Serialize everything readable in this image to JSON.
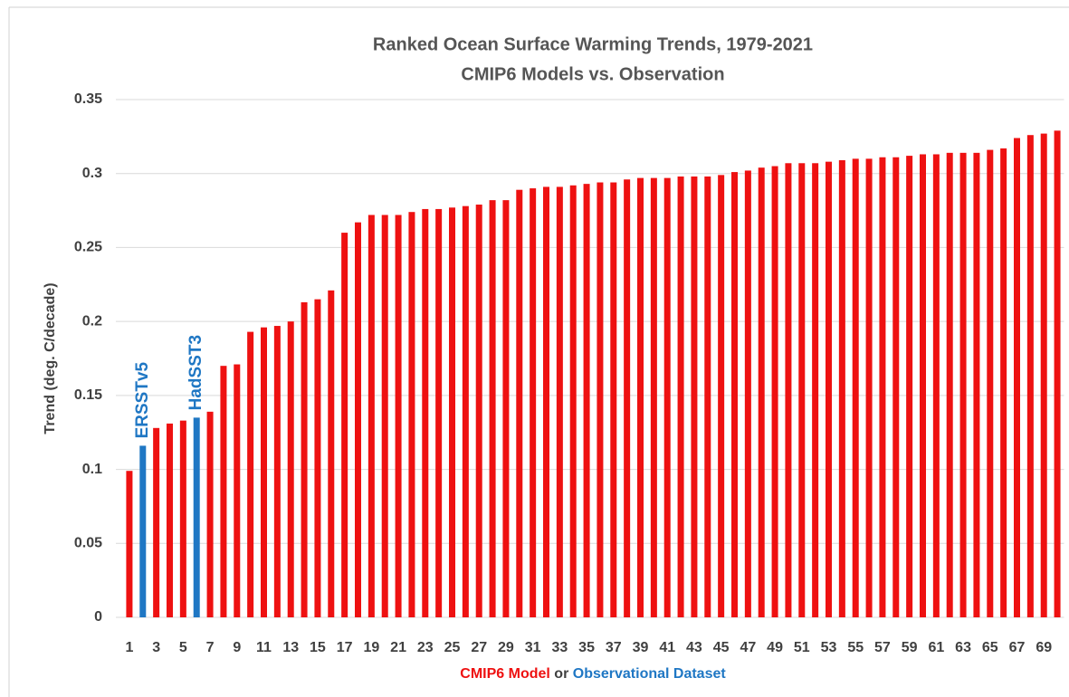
{
  "chart_data": {
    "type": "bar",
    "title": "Ranked Ocean Surface Warming Trends, 1979-2021",
    "subtitle": "CMIP6 Models vs. Observation",
    "y_label": "Trend (deg. C/decade)",
    "x_label_parts": [
      "CMIP6 Model",
      "or",
      "Observational Dataset"
    ],
    "categories": [
      "1",
      null,
      "3",
      null,
      "5",
      null,
      "7",
      null,
      "9",
      null,
      "11",
      null,
      "13",
      null,
      "15",
      null,
      "17",
      null,
      "19",
      null,
      "21",
      null,
      "23",
      null,
      "25",
      null,
      "27",
      null,
      "29",
      null,
      "31",
      null,
      "33",
      null,
      "35",
      null,
      "37",
      null,
      "39",
      null,
      "41",
      null,
      "43",
      null,
      "45",
      null,
      "47",
      null,
      "49",
      null,
      "51",
      null,
      "53",
      null,
      "55",
      null,
      "57",
      null,
      "59",
      null,
      "61",
      null,
      "63",
      null,
      "65",
      null,
      "67",
      null,
      "69",
      null
    ],
    "values": [
      0.099,
      0.116,
      0.128,
      0.131,
      0.133,
      0.135,
      0.139,
      0.17,
      0.171,
      0.193,
      0.196,
      0.197,
      0.2,
      0.213,
      0.215,
      0.221,
      0.26,
      0.267,
      0.272,
      0.272,
      0.272,
      0.274,
      0.276,
      0.276,
      0.277,
      0.278,
      0.279,
      0.282,
      0.282,
      0.289,
      0.29,
      0.291,
      0.291,
      0.292,
      0.293,
      0.294,
      0.294,
      0.296,
      0.297,
      0.297,
      0.297,
      0.298,
      0.298,
      0.298,
      0.299,
      0.301,
      0.302,
      0.304,
      0.305,
      0.307,
      0.307,
      0.307,
      0.308,
      0.309,
      0.31,
      0.31,
      0.311,
      0.311,
      0.312,
      0.313,
      0.313,
      0.314,
      0.314,
      0.314,
      0.316,
      0.317,
      0.324,
      0.326,
      0.327,
      0.329
    ],
    "color": "#ee1111",
    "highlight_color": "#1f77c4",
    "highlight": [
      false,
      true,
      false,
      false,
      false,
      true,
      false,
      false,
      false,
      false,
      false,
      false,
      false,
      false,
      false,
      false,
      false,
      false,
      false,
      false,
      false,
      false,
      false,
      false,
      false,
      false,
      false,
      false,
      false,
      false,
      false,
      false,
      false,
      false,
      false,
      false,
      false,
      false,
      false,
      false,
      false,
      false,
      false,
      false,
      false,
      false,
      false,
      false,
      false,
      false,
      false,
      false,
      false,
      false,
      false,
      false,
      false,
      false,
      false,
      false,
      false,
      false,
      false,
      false,
      false,
      false,
      false,
      false,
      false,
      false
    ],
    "annotations": [
      {
        "text": "ERSSTv5"
      },
      {
        "text": "HadSST3"
      }
    ],
    "ylim": [
      0,
      0.35
    ],
    "yticks": [
      0,
      0.05,
      0.1,
      0.15,
      0.2,
      0.25,
      0.3,
      0.35
    ],
    "grid": true
  }
}
